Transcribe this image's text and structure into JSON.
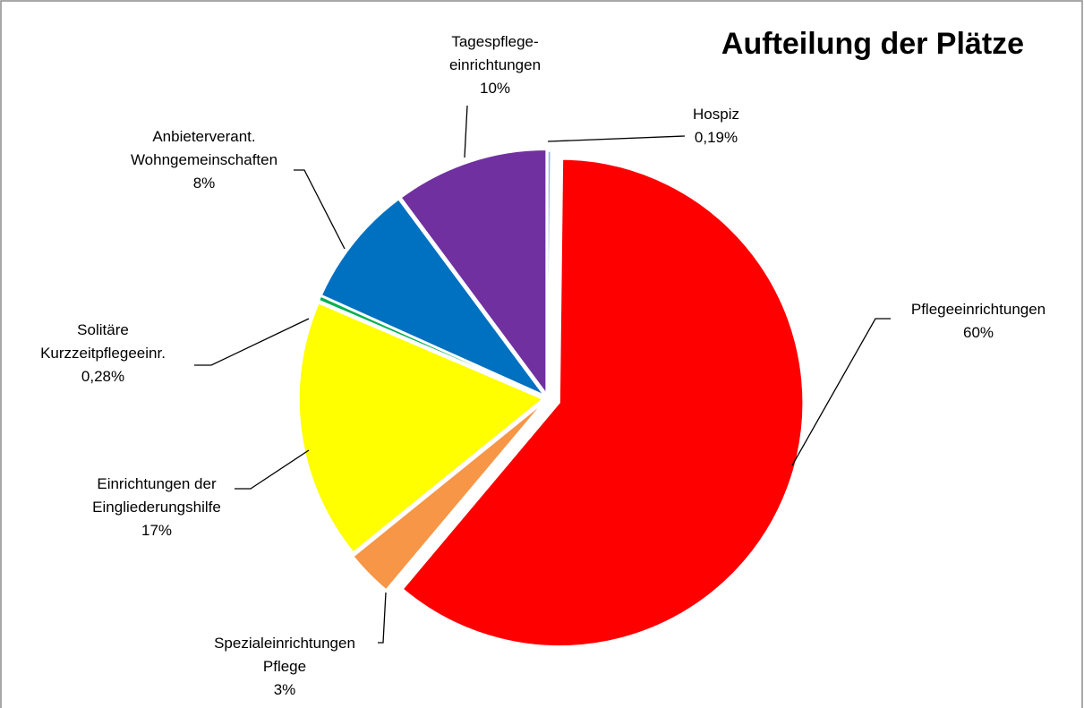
{
  "chart_data": {
    "type": "pie",
    "title": "Aufteilung der Plätze",
    "categories": [
      "Hospiz",
      "Pflegeeinrichtungen",
      "Spezialeinrichtungen\nPflege",
      "Einrichtungen der\nEingliederungshilfe",
      "Solitäre\nKurzzeitpflegeeinr.",
      "Anbieterverant.\nWohngemeinschaften",
      "Tagespflege-\neinrichtungen"
    ],
    "values": [
      0.19,
      60,
      3,
      17,
      0.28,
      8,
      10
    ],
    "value_labels": [
      "0,19%",
      "60%",
      "3%",
      "17%",
      "0,28%",
      "8%",
      "10%"
    ],
    "colors": [
      "#9eb6d8",
      "#ff0000",
      "#f79646",
      "#ffff00",
      "#00b050",
      "#0070c0",
      "#7030a0"
    ]
  }
}
